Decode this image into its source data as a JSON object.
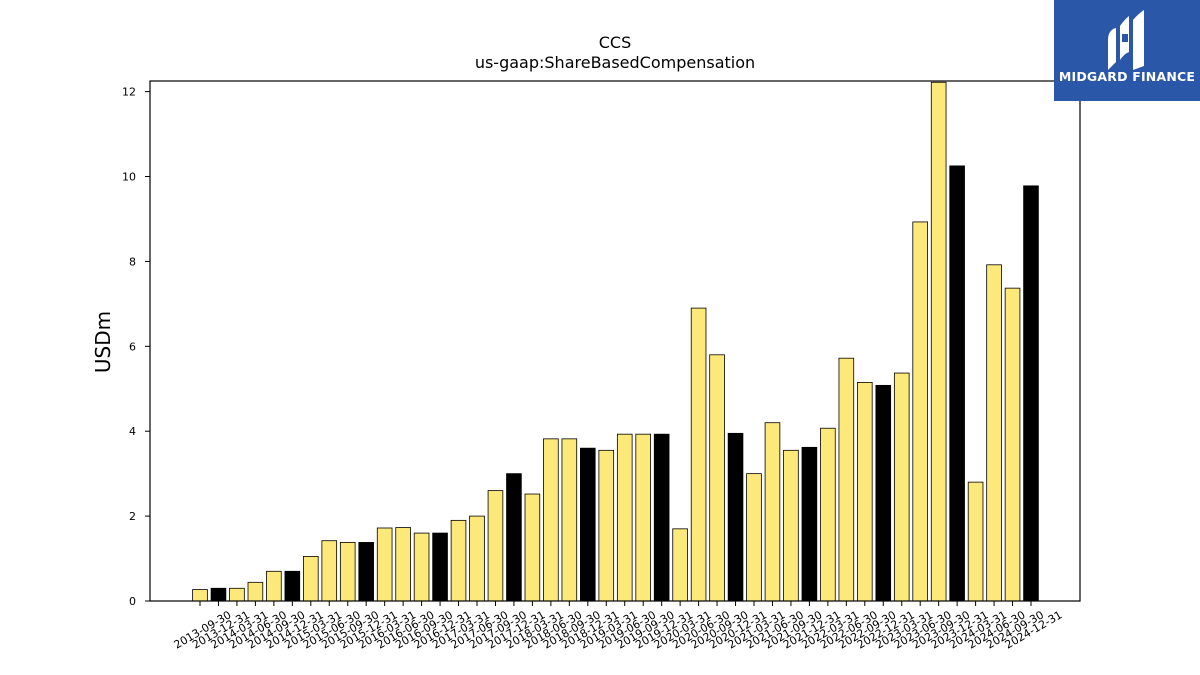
{
  "brand": {
    "name": "MIDGARD FINANCE"
  },
  "chart_data": {
    "type": "bar",
    "title": "CCS",
    "subtitle": "us-gaap:ShareBasedCompensation",
    "ylabel": "USDm",
    "xlabel": "",
    "ylim": [
      0,
      12.25
    ],
    "yticks": [
      0,
      2,
      4,
      6,
      8,
      10,
      12
    ],
    "grid": false,
    "colors": {
      "quarter": "#fce97a",
      "annual": "#000000",
      "edge": "#000000"
    },
    "categories": [
      "2013-09-30",
      "2013-12-31",
      "2014-03-31",
      "2014-06-30",
      "2014-09-30",
      "2014-12-31",
      "2015-03-31",
      "2015-06-30",
      "2015-09-30",
      "2015-12-31",
      "2016-03-31",
      "2016-06-30",
      "2016-09-30",
      "2016-12-31",
      "2017-03-31",
      "2017-06-30",
      "2017-09-30",
      "2017-12-31",
      "2018-03-31",
      "2018-06-30",
      "2018-09-30",
      "2018-12-31",
      "2019-03-31",
      "2019-06-30",
      "2019-09-30",
      "2019-12-31",
      "2020-03-31",
      "2020-06-30",
      "2020-09-30",
      "2020-12-31",
      "2021-03-31",
      "2021-06-30",
      "2021-09-30",
      "2021-12-31",
      "2022-03-31",
      "2022-06-30",
      "2022-09-30",
      "2022-12-31",
      "2023-03-31",
      "2023-06-30",
      "2023-09-30",
      "2023-12-31",
      "2024-03-31",
      "2024-06-30",
      "2024-09-30",
      "2024-12-31"
    ],
    "values": [
      0.27,
      0.3,
      0.3,
      0.44,
      0.7,
      0.7,
      1.05,
      1.42,
      1.38,
      1.38,
      1.72,
      1.73,
      1.6,
      1.6,
      1.9,
      2.0,
      2.6,
      3.0,
      2.52,
      3.82,
      3.82,
      3.6,
      3.55,
      3.93,
      3.93,
      3.93,
      1.7,
      6.9,
      5.8,
      3.95,
      3.0,
      4.2,
      3.55,
      3.62,
      4.07,
      5.72,
      5.15,
      5.08,
      5.37,
      8.93,
      12.22,
      10.25,
      2.8,
      7.92,
      7.37,
      9.78
    ],
    "highlight": [
      false,
      true,
      false,
      false,
      false,
      true,
      false,
      false,
      false,
      true,
      false,
      false,
      false,
      true,
      false,
      false,
      false,
      true,
      false,
      false,
      false,
      true,
      false,
      false,
      false,
      true,
      false,
      false,
      false,
      true,
      false,
      false,
      false,
      true,
      false,
      false,
      false,
      true,
      false,
      false,
      false,
      true,
      false,
      false,
      false,
      true
    ]
  }
}
